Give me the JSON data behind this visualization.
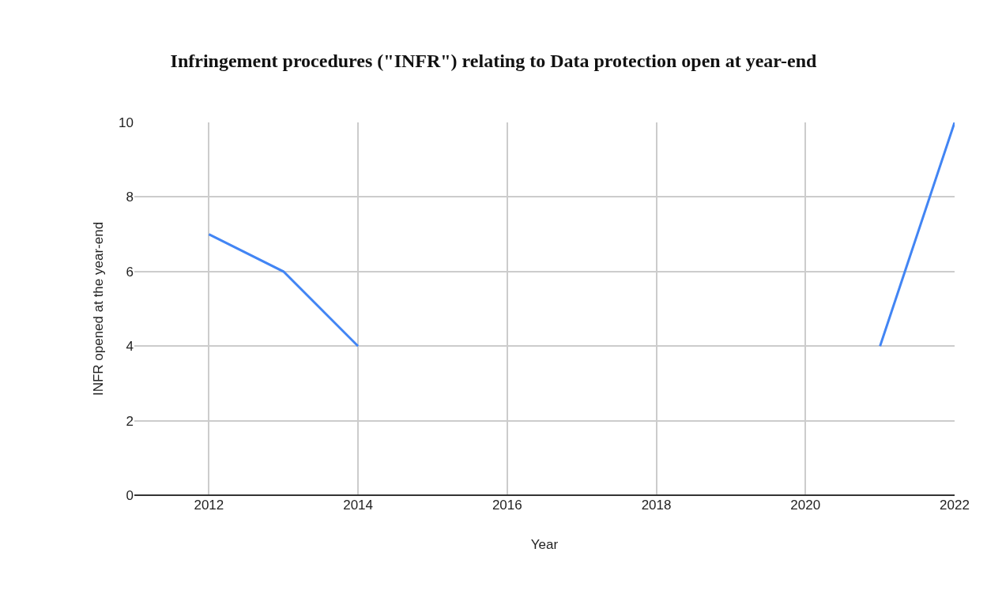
{
  "chart_data": {
    "type": "line",
    "title": "Infringement procedures (\"INFR\") relating to Data protection open at year-end",
    "xlabel": "Year",
    "ylabel": "INFR opened at the year-end",
    "x": [
      2012,
      2013,
      2014,
      2015,
      2016,
      2017,
      2018,
      2019,
      2020,
      2021,
      2022
    ],
    "series": [
      {
        "color": "#4285f4",
        "values": [
          7,
          6,
          4,
          null,
          null,
          null,
          null,
          null,
          null,
          4,
          10
        ]
      }
    ],
    "xlim": [
      2011,
      2022
    ],
    "xticks": [
      2012,
      2014,
      2016,
      2018,
      2020,
      2022
    ],
    "ylim": [
      0,
      10
    ],
    "yticks": [
      0,
      2,
      4,
      6,
      8,
      10
    ],
    "grid": true,
    "marker": "none",
    "line_style": "solid"
  }
}
